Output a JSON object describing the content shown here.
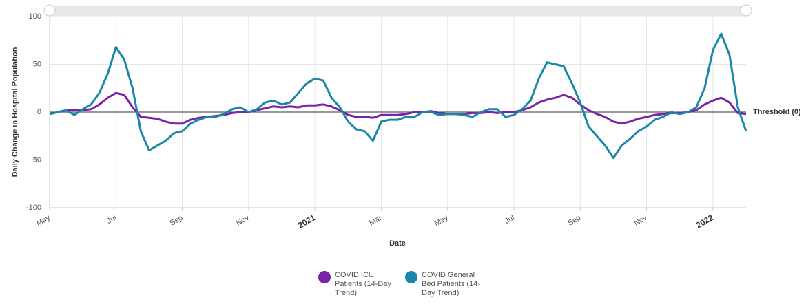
{
  "chart_data": {
    "type": "line",
    "y_label": "Daily Change in Hospital Population",
    "x_label": "Date",
    "categories": [
      "May",
      null,
      null,
      null,
      null,
      null,
      null,
      null,
      "Jul",
      null,
      null,
      null,
      null,
      null,
      null,
      null,
      "Sep",
      null,
      null,
      null,
      null,
      null,
      null,
      null,
      "Nov",
      null,
      null,
      null,
      null,
      null,
      null,
      null,
      "2021",
      null,
      null,
      null,
      null,
      null,
      null,
      null,
      "Mar",
      null,
      null,
      null,
      null,
      null,
      null,
      null,
      "May",
      null,
      null,
      null,
      null,
      null,
      null,
      null,
      "Jul",
      null,
      null,
      null,
      null,
      null,
      null,
      null,
      "Sep",
      null,
      null,
      null,
      null,
      null,
      null,
      null,
      "Nov",
      null,
      null,
      null,
      null,
      null,
      null,
      null,
      "2022",
      null,
      null,
      null,
      null
    ],
    "series": [
      {
        "name": "COVID ICU Patients (14-Day Trend)",
        "color": "#7b22a8",
        "values": [
          -2,
          0,
          2,
          2,
          2,
          3,
          8,
          15,
          20,
          18,
          5,
          -5,
          -6,
          -7,
          -10,
          -12,
          -12,
          -8,
          -6,
          -5,
          -4,
          -3,
          -1,
          0,
          0,
          2,
          4,
          6,
          5,
          6,
          5,
          7,
          7,
          8,
          6,
          2,
          -3,
          -5,
          -5,
          -6,
          -3,
          -3,
          -3,
          -2,
          0,
          0,
          1,
          -1,
          -2,
          -2,
          -2,
          -1,
          -1,
          0,
          -1,
          0,
          0,
          2,
          5,
          10,
          13,
          15,
          18,
          15,
          8,
          2,
          -2,
          -5,
          -10,
          -12,
          -10,
          -7,
          -5,
          -3,
          -2,
          -1,
          -1,
          0,
          2,
          8,
          12,
          15,
          10,
          -1,
          -2
        ]
      },
      {
        "name": "COVID General Bed Patients (14-Day Trend)",
        "color": "#1a86a8",
        "values": [
          -2,
          0,
          2,
          -3,
          3,
          8,
          20,
          40,
          68,
          55,
          25,
          -20,
          -40,
          -35,
          -30,
          -22,
          -20,
          -12,
          -8,
          -5,
          -5,
          -2,
          3,
          5,
          0,
          3,
          10,
          12,
          8,
          10,
          20,
          30,
          35,
          33,
          15,
          5,
          -10,
          -18,
          -20,
          -30,
          -10,
          -8,
          -8,
          -5,
          -5,
          0,
          0,
          -3,
          -2,
          -2,
          -3,
          -5,
          0,
          3,
          3,
          -5,
          -3,
          3,
          12,
          35,
          52,
          50,
          48,
          30,
          10,
          -15,
          -25,
          -35,
          -48,
          -35,
          -28,
          -20,
          -15,
          -8,
          -5,
          0,
          -2,
          0,
          5,
          25,
          65,
          82,
          60,
          5,
          -20
        ]
      }
    ],
    "ylim": [
      -100,
      100
    ],
    "yticks": [
      -100,
      -50,
      0,
      50,
      100
    ],
    "grid": true,
    "threshold": {
      "value": 0,
      "label": "Threshold (0)"
    },
    "legend": "bottom"
  }
}
